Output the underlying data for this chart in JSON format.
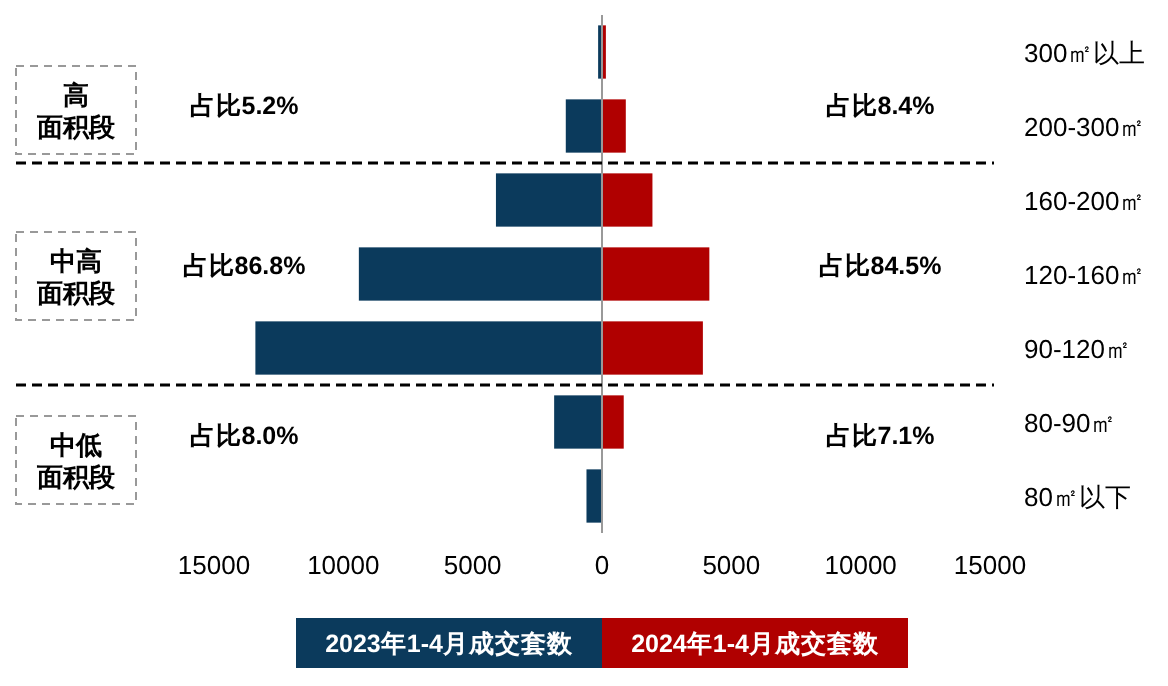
{
  "chart_data": {
    "type": "bar",
    "orientation": "horizontal",
    "categories": [
      "300㎡以上",
      "200-300㎡",
      "160-200㎡",
      "120-160㎡",
      "90-120㎡",
      "80-90㎡",
      "80㎡以下"
    ],
    "series": [
      {
        "name": "2023年1-4月成交套数",
        "color": "#0b3a5c",
        "values": [
          -150,
          -1400,
          -4100,
          -9400,
          -13400,
          -1850,
          -600
        ]
      },
      {
        "name": "2024年1-4月成交套数",
        "color": "#b00000",
        "values": [
          150,
          920,
          1950,
          4150,
          3900,
          840,
          null
        ]
      }
    ],
    "xlim": [
      -15000,
      15000
    ],
    "xticks": [
      {
        "value": -15000,
        "label": "15000"
      },
      {
        "value": -10000,
        "label": "10000"
      },
      {
        "value": -5000,
        "label": "5000"
      },
      0,
      5000,
      10000,
      15000
    ],
    "stacked": true,
    "annotations": [
      "高",
      "面积段",
      "中高",
      "面积段",
      "中低",
      "面积段",
      "占比5.2%",
      "占比8.4%",
      "占比86.8%",
      "占比84.5%",
      "占比8.0%",
      "占比7.1%"
    ],
    "legend": "bottom",
    "grid": false
  }
}
